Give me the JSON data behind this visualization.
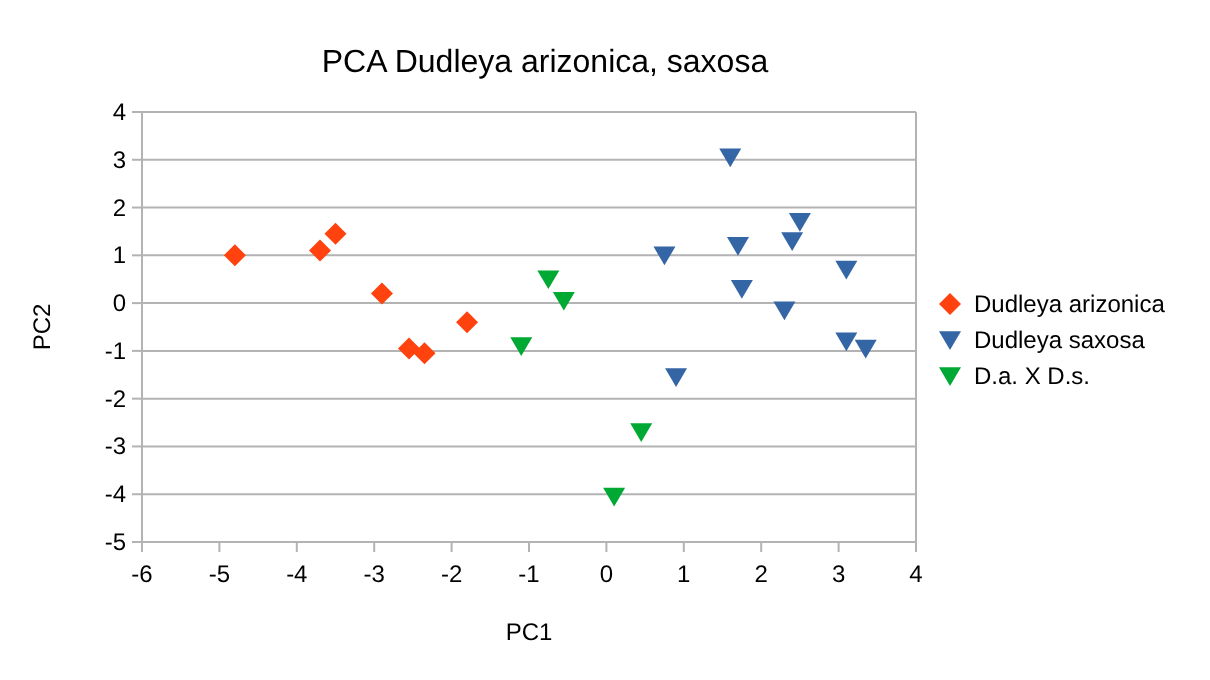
{
  "chart_data": {
    "type": "scatter",
    "title": "PCA Dudleya arizonica, saxosa",
    "xlabel": "PC1",
    "ylabel": "PC2",
    "xlim": [
      -6,
      4
    ],
    "xticks": [
      -6,
      -5,
      -4,
      -3,
      -2,
      -1,
      0,
      1,
      2,
      3,
      4
    ],
    "ylim": [
      -5,
      4
    ],
    "yticks": [
      -5,
      -4,
      -3,
      -2,
      -1,
      0,
      1,
      2,
      3,
      4
    ],
    "grid": "y",
    "legend": "right",
    "series": [
      {
        "name": "Dudleya arizonica",
        "color": "#ff420e",
        "marker": "diamond",
        "x": [
          -4.8,
          -3.7,
          -3.5,
          -2.9,
          -2.55,
          -2.35,
          -1.8
        ],
        "values": [
          1.0,
          1.1,
          1.45,
          0.2,
          -0.95,
          -1.05,
          -0.4
        ]
      },
      {
        "name": "Dudleya saxosa",
        "color": "#3465a4",
        "marker": "triangle",
        "x": [
          1.6,
          0.75,
          1.7,
          2.5,
          2.4,
          1.75,
          2.3,
          3.1,
          3.1,
          3.35,
          0.9
        ],
        "values": [
          3.05,
          1.0,
          1.2,
          1.7,
          1.3,
          0.3,
          -0.15,
          0.7,
          -0.8,
          -0.95,
          -1.55
        ]
      },
      {
        "name": "D.a. X D.s.",
        "color": "#00a933",
        "marker": "triangle",
        "x": [
          -0.75,
          -0.55,
          -1.1,
          0.45,
          0.1
        ],
        "values": [
          0.5,
          0.05,
          -0.9,
          -2.7,
          -4.05
        ]
      }
    ]
  }
}
